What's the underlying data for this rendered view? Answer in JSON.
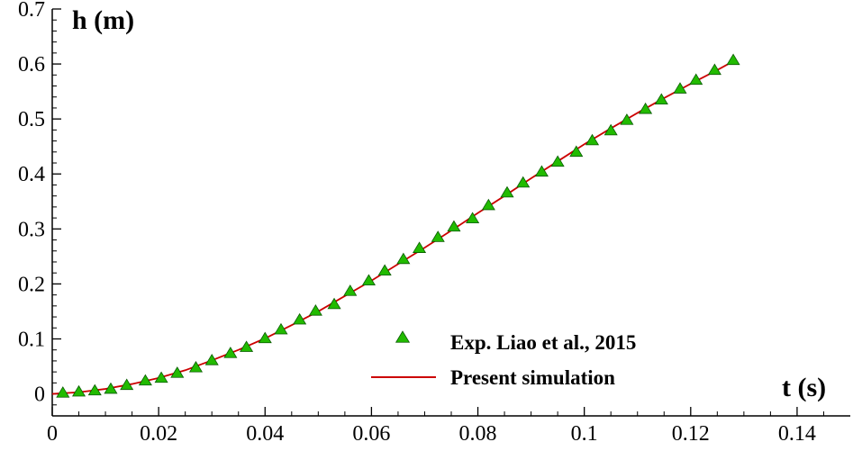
{
  "chart_data": {
    "type": "scatter",
    "title": "",
    "xlabel": "t (s)",
    "ylabel": "h (m)",
    "xlim": [
      0,
      0.15
    ],
    "ylim": [
      -0.04,
      0.7
    ],
    "x_ticks": [
      0,
      0.02,
      0.04,
      0.06,
      0.08,
      0.1,
      0.12,
      0.14
    ],
    "x_tick_labels": [
      "0",
      "0.02",
      "0.04",
      "0.06",
      "0.08",
      "0.1",
      "0.12",
      "0.14"
    ],
    "y_ticks": [
      0,
      0.1,
      0.2,
      0.3,
      0.4,
      0.5,
      0.6,
      0.7
    ],
    "y_tick_labels": [
      "0",
      "0.1",
      "0.2",
      "0.3",
      "0.4",
      "0.5",
      "0.6",
      "0.7"
    ],
    "grid": false,
    "legend_position": "bottom-right",
    "series": [
      {
        "name": "Exp. Liao et al., 2015",
        "kind": "scatter",
        "marker": "triangle",
        "color": "#22bb00",
        "x": [
          0.002,
          0.005,
          0.008,
          0.011,
          0.014,
          0.0175,
          0.0205,
          0.0235,
          0.027,
          0.03,
          0.0335,
          0.0365,
          0.04,
          0.043,
          0.0465,
          0.0495,
          0.053,
          0.056,
          0.0595,
          0.0625,
          0.066,
          0.069,
          0.0725,
          0.0755,
          0.079,
          0.082,
          0.0855,
          0.0885,
          0.092,
          0.095,
          0.0985,
          0.1015,
          0.105,
          0.108,
          0.1115,
          0.1145,
          0.118,
          0.121,
          0.1245,
          0.128
        ],
        "y": [
          0.002,
          0.004,
          0.006,
          0.009,
          0.016,
          0.024,
          0.029,
          0.038,
          0.048,
          0.061,
          0.074,
          0.085,
          0.101,
          0.117,
          0.135,
          0.151,
          0.163,
          0.187,
          0.206,
          0.224,
          0.245,
          0.265,
          0.285,
          0.304,
          0.319,
          0.343,
          0.366,
          0.384,
          0.404,
          0.422,
          0.44,
          0.461,
          0.479,
          0.498,
          0.518,
          0.535,
          0.555,
          0.571,
          0.589,
          0.607
        ]
      },
      {
        "name": "Present simulation",
        "kind": "line",
        "color": "#cc0000",
        "x": [
          0.0,
          0.005,
          0.01,
          0.015,
          0.02,
          0.025,
          0.03,
          0.035,
          0.04,
          0.045,
          0.05,
          0.055,
          0.06,
          0.065,
          0.07,
          0.075,
          0.08,
          0.085,
          0.09,
          0.095,
          0.1,
          0.105,
          0.11,
          0.115,
          0.12,
          0.125,
          0.128
        ],
        "y": [
          0.0,
          0.003,
          0.009,
          0.018,
          0.029,
          0.043,
          0.061,
          0.08,
          0.101,
          0.125,
          0.15,
          0.178,
          0.206,
          0.236,
          0.266,
          0.297,
          0.329,
          0.36,
          0.392,
          0.423,
          0.454,
          0.483,
          0.511,
          0.538,
          0.564,
          0.589,
          0.605
        ]
      }
    ]
  }
}
